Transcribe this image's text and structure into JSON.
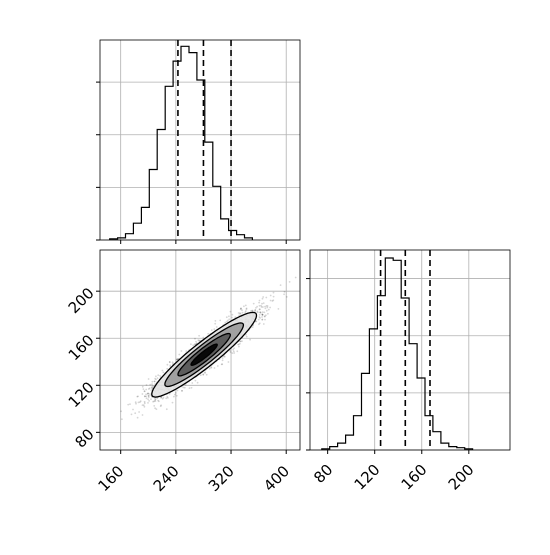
{
  "chart_data": [
    {
      "panel": "top-left",
      "type": "histogram",
      "variable": 1,
      "x_range": [
        130,
        420
      ],
      "x_ticks": [
        160,
        240,
        320,
        400
      ],
      "grid": true,
      "bins_start": 144,
      "bin_width": 11.5,
      "counts": [
        1,
        2,
        6,
        16,
        31,
        67,
        105,
        146,
        170,
        184,
        178,
        152,
        93,
        51,
        20,
        9,
        5,
        2
      ],
      "counts_ylim": [
        0,
        190
      ],
      "y_ticks": [
        0,
        50,
        100,
        150
      ],
      "quantile_lines": [
        243,
        280,
        320
      ]
    },
    {
      "panel": "bottom-left",
      "type": "scatter",
      "x_range": [
        130,
        420
      ],
      "y_range": [
        65,
        235
      ],
      "x_ticks": [
        160,
        240,
        320,
        400
      ],
      "y_ticks": [
        80,
        120,
        160,
        200
      ],
      "x_tick_labels": [
        "160",
        "240",
        "320",
        "400"
      ],
      "y_tick_labels": [
        "80",
        "120",
        "160",
        "200"
      ],
      "grid": true,
      "mean": [
        281,
        146
      ],
      "std": [
        38,
        18
      ],
      "correlation": 0.93,
      "contour_levels": [
        {
          "center": [
            281,
            146
          ],
          "semi_axes_sigma": 0.5
        },
        {
          "center": [
            281,
            146
          ],
          "semi_axes_sigma": 1.0
        },
        {
          "center": [
            281,
            146
          ],
          "semi_axes_sigma": 1.5
        },
        {
          "center": [
            281,
            146
          ],
          "semi_axes_sigma": 2.0
        }
      ]
    },
    {
      "panel": "bottom-right",
      "type": "histogram",
      "variable": 2,
      "x_range": [
        65,
        235
      ],
      "x_ticks": [
        80,
        120,
        160,
        200
      ],
      "x_tick_labels": [
        "80",
        "120",
        "160",
        "200"
      ],
      "grid": true,
      "bins_start": 75,
      "bin_width": 6.75,
      "counts": [
        1,
        3,
        6,
        13,
        30,
        67,
        106,
        135,
        168,
        166,
        133,
        93,
        63,
        30,
        16,
        6,
        3,
        2,
        1
      ],
      "counts_ylim": [
        0,
        175
      ],
      "y_ticks": [
        0,
        50,
        100,
        150
      ],
      "quantile_lines": [
        125,
        146,
        167
      ]
    }
  ]
}
